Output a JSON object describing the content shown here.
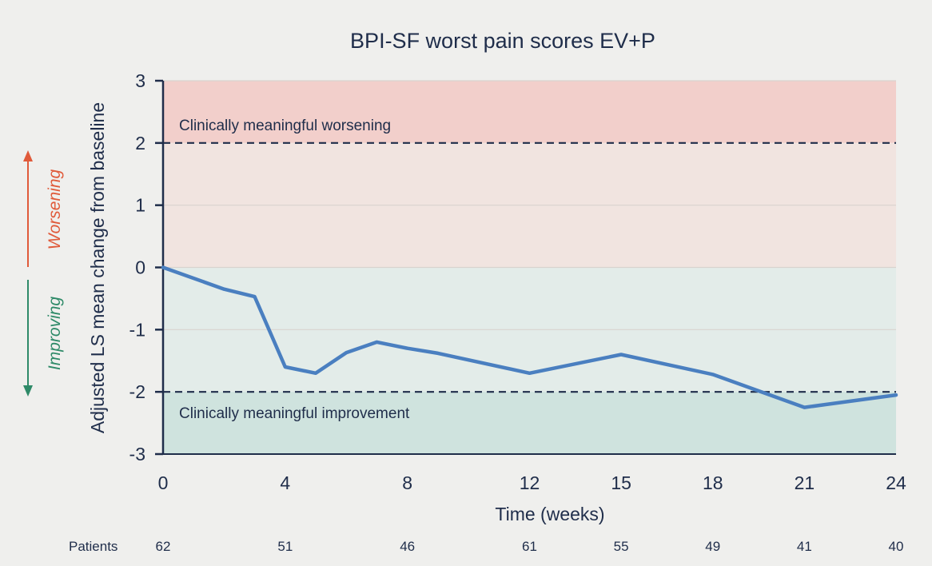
{
  "chart_data": {
    "type": "line",
    "title": "BPI-SF worst pain scores EV+P",
    "xlabel": "Time (weeks)",
    "ylabel": "Adjusted LS mean change from baseline",
    "xlim": [
      0,
      24
    ],
    "ylim": [
      -3,
      3
    ],
    "x_ticks": [
      0,
      4,
      8,
      12,
      15,
      18,
      21,
      24
    ],
    "y_ticks": [
      3,
      2,
      1,
      0,
      -1,
      -2,
      -3
    ],
    "y_tick_labels": [
      "3",
      "2",
      "1",
      "0",
      "-1",
      "-2",
      "-3"
    ],
    "series": [
      {
        "x": [
          0,
          2,
          3,
          4,
          5,
          6,
          7,
          8,
          9,
          12,
          15,
          18,
          21,
          24
        ],
        "y": [
          0,
          -0.35,
          -0.47,
          -1.6,
          -1.7,
          -1.37,
          -1.2,
          -1.3,
          -1.38,
          -1.7,
          -1.4,
          -1.72,
          -2.25,
          -2.05
        ],
        "color": "#4a7fc0"
      }
    ],
    "thresholds": [
      {
        "y": 2,
        "label": "Clinically meaningful worsening"
      },
      {
        "y": -2,
        "label": "Clinically meaningful improvement"
      }
    ],
    "zones": {
      "worsening_strong": "#f2cfcb",
      "worsening_light": "#f1e4e0",
      "improving_light": "#e3ece9",
      "improving_strong": "#cfe3de"
    },
    "direction_labels": {
      "up": {
        "text": "Worsening",
        "color": "#e05a3a"
      },
      "down": {
        "text": "Improving",
        "color": "#2e8a68"
      }
    },
    "patients": {
      "label": "Patients",
      "x": [
        0,
        4,
        8,
        12,
        15,
        18,
        21,
        24
      ],
      "counts": [
        "62",
        "51",
        "46",
        "61",
        "55",
        "49",
        "41",
        "40"
      ]
    },
    "grid": true,
    "legend": "none"
  }
}
